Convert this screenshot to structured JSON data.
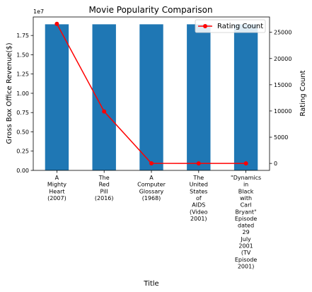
{
  "chart_data": {
    "type": "bar",
    "title": "Movie Popularity Comparison",
    "xlabel": "Title",
    "categories": [
      [
        "A",
        "Mighty",
        "Heart",
        "(2007)"
      ],
      [
        "The",
        "Red",
        "Pill",
        "(2016)"
      ],
      [
        "A",
        "Computer",
        "Glossary",
        "(1968)"
      ],
      [
        "The",
        "United",
        "States",
        "of",
        "AIDS",
        "(Video",
        "2001)"
      ],
      [
        "\"Dynamics",
        "in",
        "Black",
        "with",
        "Carl",
        "Bryant\"",
        "Episode",
        "dated",
        "29",
        "July",
        "2001",
        "(TV",
        "Episode",
        "2001)"
      ]
    ],
    "y_left": {
      "label": "Gross Box Office Revenue($)",
      "offset_text": "1e7",
      "ylim": [
        0,
        19900000
      ],
      "ticks": [
        0,
        2500000,
        5000000,
        7500000,
        10000000,
        12500000,
        15000000,
        17500000
      ],
      "tick_labels": [
        "0.00",
        "0.25",
        "0.50",
        "0.75",
        "1.00",
        "1.25",
        "1.50",
        "1.75"
      ]
    },
    "y_right": {
      "label": "Rating Count",
      "ylim": [
        -1330,
        27920
      ],
      "ticks": [
        0,
        5000,
        10000,
        15000,
        20000,
        25000
      ],
      "tick_labels": [
        "0",
        "5000",
        "10000",
        "15000",
        "20000",
        "25000"
      ]
    },
    "series": [
      {
        "kind": "bar",
        "axis": "left",
        "color": "#1f77b4",
        "values": [
          18950000,
          18950000,
          18950000,
          18950000,
          18950000
        ]
      },
      {
        "name": "Rating Count",
        "kind": "line",
        "axis": "right",
        "color": "#ff0000",
        "marker": "circle",
        "values": [
          26600,
          9900,
          10,
          5,
          1
        ]
      }
    ],
    "legend": {
      "position": "top-right"
    },
    "grid": false
  }
}
